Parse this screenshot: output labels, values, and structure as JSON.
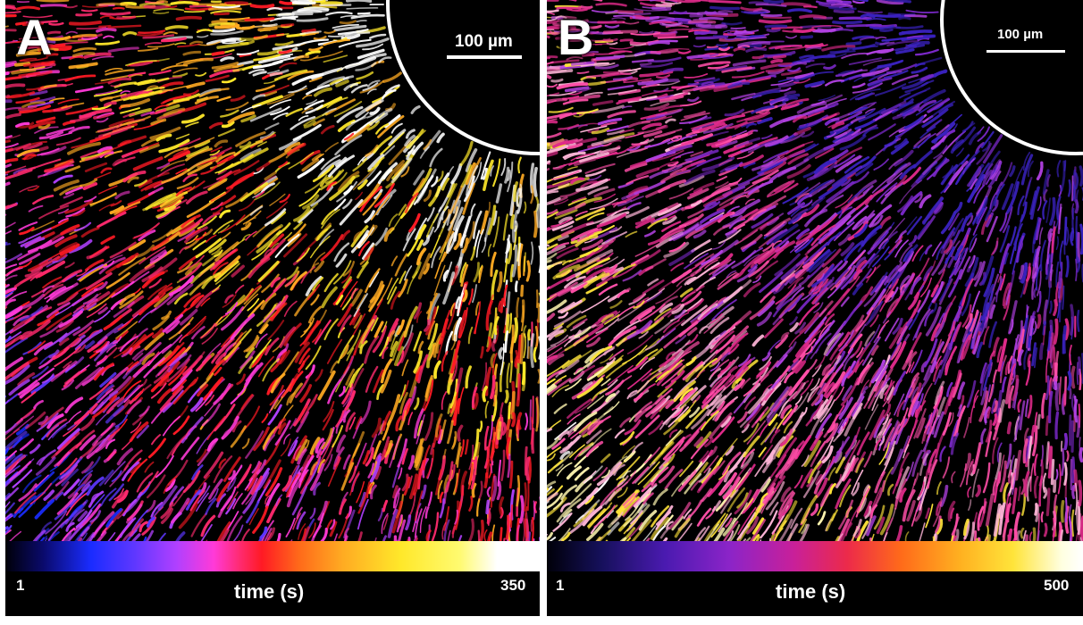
{
  "panels": [
    {
      "letter": "A",
      "scale_label": "100 µm",
      "colorbar": {
        "min": "1",
        "title": "time (s)",
        "max": "350"
      },
      "palette": [
        "#1a2cff",
        "#5d37ff",
        "#b040ff",
        "#ff3ad8",
        "#ff2a6e",
        "#ff1a24",
        "#ffaa22",
        "#ffe82a",
        "#ffffff"
      ]
    },
    {
      "letter": "B",
      "scale_label": "100 µm",
      "colorbar": {
        "min": "1",
        "title": "time (s)",
        "max": "500"
      },
      "palette": [
        "#ffffff",
        "#fff6b0",
        "#ffe43a",
        "#ffb6d8",
        "#ff4fa8",
        "#e02a8a",
        "#b040e0",
        "#7a28c8",
        "#3a22c0"
      ]
    }
  ],
  "colors": {
    "ring": "#ffffff",
    "background": "#000000"
  }
}
